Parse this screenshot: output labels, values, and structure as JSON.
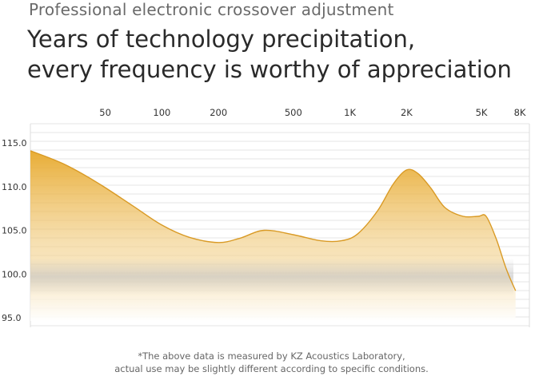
{
  "header": {
    "subtitle": "Professional electronic crossover adjustment",
    "title_line1": "Years of technology precipitation,",
    "title_line2": "every frequency is worthy of appreciation"
  },
  "footnote": {
    "line1": "*The above data is measured by KZ Acoustics Laboratory,",
    "line2": "actual use may be slightly different according to specific conditions."
  },
  "colors": {
    "fill_top": "#e7a82a",
    "fill_bottom": "#ffffff",
    "line": "#d99a25",
    "grid": "#dcdcdc",
    "haze": "#c8c8c8"
  },
  "chart_data": {
    "type": "area",
    "title": "",
    "xlabel": "",
    "ylabel": "",
    "x_scale": "log",
    "xlim": [
      20,
      9000
    ],
    "ylim": [
      95,
      115
    ],
    "grid": true,
    "x_ticks": [
      {
        "value": 50,
        "label": "50"
      },
      {
        "value": 100,
        "label": "100"
      },
      {
        "value": 200,
        "label": "200"
      },
      {
        "value": 500,
        "label": "500"
      },
      {
        "value": 1000,
        "label": "1K"
      },
      {
        "value": 2000,
        "label": "2K"
      },
      {
        "value": 5000,
        "label": "5K"
      },
      {
        "value": 8000,
        "label": "8K"
      }
    ],
    "y_ticks": [
      {
        "value": 115,
        "label": "115.0"
      },
      {
        "value": 110,
        "label": "110.0"
      },
      {
        "value": 105,
        "label": "105.0"
      },
      {
        "value": 100,
        "label": "100.0"
      },
      {
        "value": 95,
        "label": "95.0"
      }
    ],
    "series": [
      {
        "x": [
          20,
          30,
          45,
          70,
          100,
          140,
          200,
          260,
          350,
          500,
          700,
          900,
          1100,
          1400,
          1700,
          2000,
          2300,
          2700,
          3200,
          4000,
          4800,
          5300,
          6000,
          6800,
          7600
        ],
        "y": [
          114.1,
          112.6,
          110.5,
          107.8,
          105.6,
          104.2,
          103.6,
          104.1,
          105.0,
          104.5,
          103.8,
          103.8,
          104.6,
          107.2,
          110.3,
          111.9,
          111.5,
          109.8,
          107.6,
          106.6,
          106.6,
          106.6,
          104.0,
          100.5,
          98.1
        ]
      }
    ]
  }
}
